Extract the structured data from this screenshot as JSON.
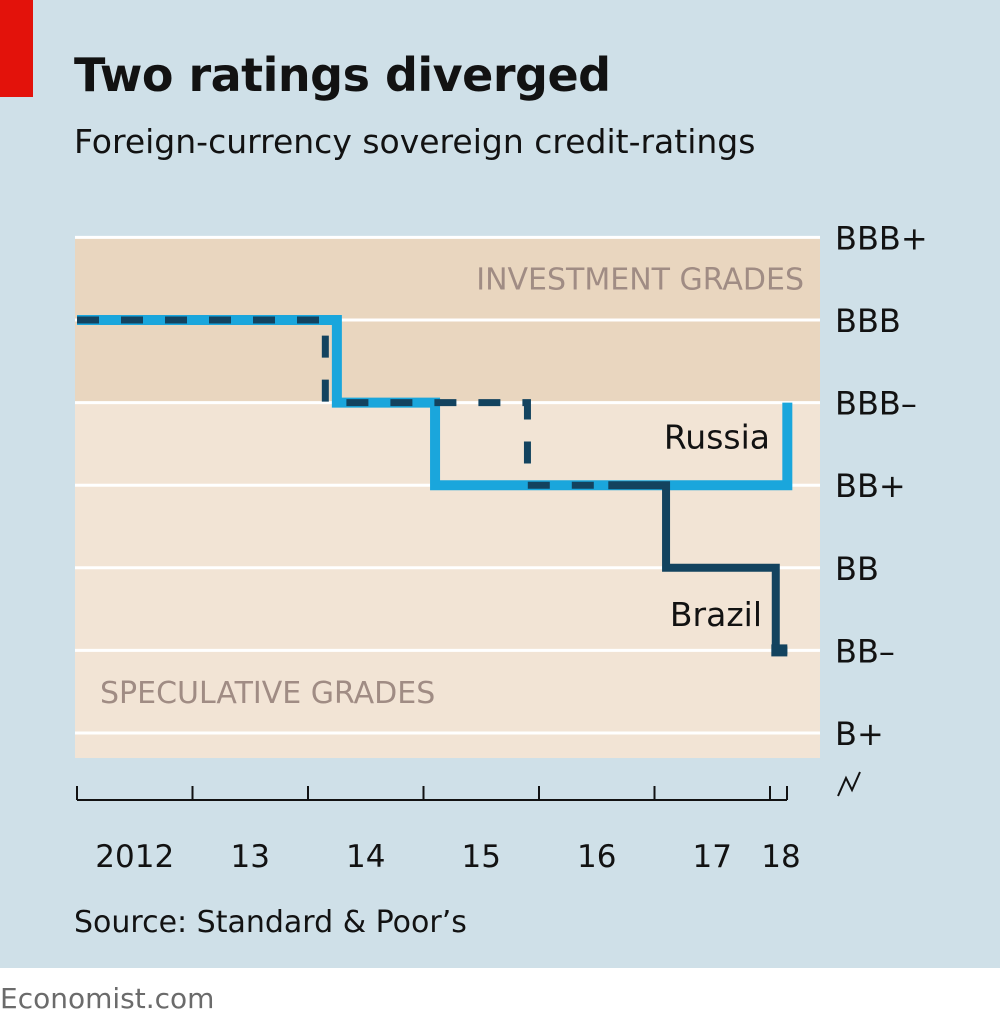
{
  "header": {
    "title": "Two ratings diverged",
    "subtitle": "Foreign-currency sovereign credit-ratings"
  },
  "footer": {
    "source": "Source: Standard & Poor’s",
    "brand": "Economist.com"
  },
  "colors": {
    "background": "#cfe0e8",
    "brand_red": "#e3120b",
    "investment_band": "#e9d6bf",
    "speculative_band": "#f2e4d5",
    "grade_label": "#a08c84",
    "russia": "#1aa6dc",
    "brazil": "#13435f"
  },
  "chart_data": {
    "type": "line",
    "step": true,
    "x_axis": {
      "range": [
        2012,
        2018.15
      ],
      "ticks": [
        2012,
        2013,
        2014,
        2015,
        2016,
        2017,
        2018
      ],
      "tick_labels": [
        "2012",
        "13",
        "14",
        "15",
        "16",
        "17",
        "18"
      ],
      "axis_break": true
    },
    "y_axis": {
      "position": "right",
      "categories": [
        "B+",
        "BB–",
        "BB",
        "BB+",
        "BBB–",
        "BBB",
        "BBB+"
      ],
      "grid": true
    },
    "bands": [
      {
        "label": "INVESTMENT GRADES",
        "from": "BBB–",
        "to": "BBB+"
      },
      {
        "label": "SPECULATIVE GRADES",
        "from": "B+",
        "to": "BBB–"
      }
    ],
    "series": [
      {
        "name": "Russia",
        "style": "light-blue",
        "points": [
          {
            "x": 2012.0,
            "rating": "BBB"
          },
          {
            "x": 2014.25,
            "rating": "BBB–"
          },
          {
            "x": 2015.1,
            "rating": "BB+"
          },
          {
            "x": 2018.15,
            "rating": "BBB–"
          }
        ]
      },
      {
        "name": "Brazil",
        "style": "dark-blue",
        "points": [
          {
            "x": 2012.0,
            "rating": "BBB"
          },
          {
            "x": 2014.15,
            "rating": "BBB–"
          },
          {
            "x": 2015.9,
            "rating": "BB+"
          },
          {
            "x": 2017.1,
            "rating": "BB"
          },
          {
            "x": 2018.05,
            "rating": "BB–"
          },
          {
            "x": 2018.15,
            "rating": "BB–"
          }
        ]
      }
    ]
  }
}
